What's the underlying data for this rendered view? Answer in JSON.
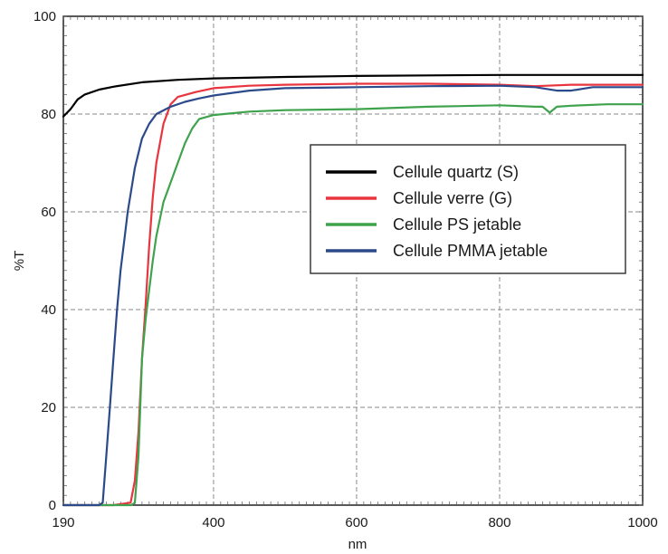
{
  "chart_data": {
    "type": "line",
    "title": "",
    "xlabel": "nm",
    "ylabel": "%T",
    "xlim": [
      190,
      1000
    ],
    "ylim": [
      0,
      100
    ],
    "grid": true,
    "legend_position": "right",
    "x_ticks": [
      190,
      400,
      600,
      800,
      1000
    ],
    "y_ticks": [
      0,
      20,
      40,
      60,
      80,
      100
    ],
    "x_tick_labels": [
      "190",
      "400",
      "600",
      "800",
      "1000"
    ],
    "y_tick_labels": [
      "0",
      "20",
      "40",
      "60",
      "80",
      "100"
    ],
    "series": [
      {
        "name": "Cellule quartz (S)",
        "color": "#000000",
        "points": [
          [
            190,
            79.5
          ],
          [
            200,
            81
          ],
          [
            210,
            83
          ],
          [
            220,
            84
          ],
          [
            240,
            85
          ],
          [
            260,
            85.6
          ],
          [
            300,
            86.5
          ],
          [
            350,
            87
          ],
          [
            400,
            87.3
          ],
          [
            500,
            87.6
          ],
          [
            600,
            87.8
          ],
          [
            700,
            87.9
          ],
          [
            800,
            88
          ],
          [
            900,
            88
          ],
          [
            1000,
            88
          ]
        ]
      },
      {
        "name": "Cellule verre (G)",
        "color": "#e8353f",
        "points": [
          [
            190,
            0
          ],
          [
            260,
            0
          ],
          [
            284,
            0.5
          ],
          [
            290,
            5
          ],
          [
            295,
            15
          ],
          [
            300,
            30
          ],
          [
            305,
            41
          ],
          [
            310,
            53
          ],
          [
            315,
            63
          ],
          [
            320,
            70
          ],
          [
            330,
            78
          ],
          [
            340,
            82
          ],
          [
            350,
            83.5
          ],
          [
            375,
            84.5
          ],
          [
            400,
            85.3
          ],
          [
            450,
            85.8
          ],
          [
            500,
            86
          ],
          [
            600,
            86.2
          ],
          [
            700,
            86.2
          ],
          [
            800,
            86
          ],
          [
            850,
            85.7
          ],
          [
            900,
            86
          ],
          [
            950,
            86
          ],
          [
            1000,
            86
          ]
        ]
      },
      {
        "name": "Cellule PS jetable",
        "color": "#3fa34d",
        "points": [
          [
            190,
            0
          ],
          [
            285,
            0
          ],
          [
            290,
            0.5
          ],
          [
            295,
            10
          ],
          [
            300,
            30
          ],
          [
            305,
            38
          ],
          [
            310,
            44
          ],
          [
            315,
            50
          ],
          [
            320,
            55
          ],
          [
            330,
            62
          ],
          [
            340,
            66
          ],
          [
            350,
            70
          ],
          [
            360,
            74
          ],
          [
            370,
            77
          ],
          [
            380,
            79
          ],
          [
            400,
            79.8
          ],
          [
            450,
            80.5
          ],
          [
            500,
            80.8
          ],
          [
            600,
            81
          ],
          [
            700,
            81.5
          ],
          [
            800,
            81.8
          ],
          [
            850,
            81.5
          ],
          [
            860,
            81.5
          ],
          [
            870,
            80.3
          ],
          [
            880,
            81.5
          ],
          [
            900,
            81.7
          ],
          [
            950,
            82
          ],
          [
            1000,
            82
          ]
        ]
      },
      {
        "name": "Cellule PMMA jetable",
        "color": "#2b4a8c",
        "points": [
          [
            190,
            0
          ],
          [
            240,
            0
          ],
          [
            245,
            0.5
          ],
          [
            250,
            10
          ],
          [
            255,
            20
          ],
          [
            260,
            30
          ],
          [
            265,
            40
          ],
          [
            270,
            48
          ],
          [
            275,
            54
          ],
          [
            280,
            60
          ],
          [
            290,
            69
          ],
          [
            300,
            75
          ],
          [
            310,
            78
          ],
          [
            320,
            80
          ],
          [
            340,
            81.5
          ],
          [
            360,
            82.5
          ],
          [
            380,
            83.2
          ],
          [
            400,
            83.8
          ],
          [
            450,
            84.8
          ],
          [
            500,
            85.3
          ],
          [
            600,
            85.5
          ],
          [
            700,
            85.7
          ],
          [
            800,
            85.8
          ],
          [
            850,
            85.5
          ],
          [
            880,
            84.8
          ],
          [
            900,
            84.8
          ],
          [
            930,
            85.5
          ],
          [
            1000,
            85.5
          ]
        ]
      }
    ]
  }
}
